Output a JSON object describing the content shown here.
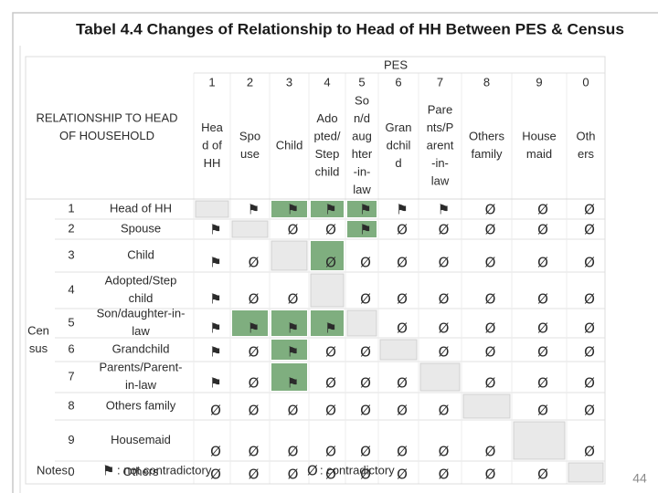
{
  "header": {
    "title": "Tabel 4.4 Changes of Relationship to Head of HH Between PES & Census"
  },
  "table": {
    "pes_label": "PES",
    "relationship_label": [
      "RELATIONSHIP TO HEAD",
      "OF HOUSEHOLD"
    ],
    "census_label": [
      "Cen",
      "sus"
    ],
    "columns": [
      {
        "code": "1",
        "label": [
          "Hea",
          "d of",
          "HH"
        ]
      },
      {
        "code": "2",
        "label": [
          "Spo",
          "use"
        ]
      },
      {
        "code": "3",
        "label": [
          "Child"
        ]
      },
      {
        "code": "4",
        "label": [
          "Ado",
          "pted/",
          "Step",
          "child"
        ]
      },
      {
        "code": "5",
        "label": [
          "So",
          "n/d",
          "aug",
          "hter",
          "-in-",
          "law"
        ]
      },
      {
        "code": "6",
        "label": [
          "Gran",
          "dchil",
          "d"
        ]
      },
      {
        "code": "7",
        "label": [
          "Pare",
          "nts/P",
          "arent",
          "-in-",
          "law"
        ]
      },
      {
        "code": "8",
        "label": [
          "Others",
          "family"
        ]
      },
      {
        "code": "9",
        "label": [
          "House",
          "maid"
        ]
      },
      {
        "code": "0",
        "label": [
          "Oth",
          "ers"
        ]
      }
    ],
    "rows": [
      {
        "code": "1",
        "label": [
          "Head of HH"
        ],
        "cells": [
          null,
          "⚑",
          "⚑",
          "⚑",
          "⚑",
          "⚑",
          "⚑",
          "Ø",
          "Ø",
          "Ø"
        ]
      },
      {
        "code": "2",
        "label": [
          "Spouse"
        ],
        "cells": [
          "⚑",
          null,
          "Ø",
          "Ø",
          "⚑",
          "Ø",
          "Ø",
          "Ø",
          "Ø",
          "Ø"
        ]
      },
      {
        "code": "3",
        "label": [
          "Child"
        ],
        "cells": [
          "⚑",
          "Ø",
          null,
          "Ø",
          "Ø",
          "Ø",
          "Ø",
          "Ø",
          "Ø",
          "Ø"
        ]
      },
      {
        "code": "4",
        "label": [
          "Adopted/Step",
          "child"
        ],
        "cells": [
          "⚑",
          "Ø",
          "Ø",
          null,
          "Ø",
          "Ø",
          "Ø",
          "Ø",
          "Ø",
          "Ø"
        ]
      },
      {
        "code": "5",
        "label": [
          "Son/daughter-in-",
          "law"
        ],
        "cells": [
          "⚑",
          "⚑",
          "⚑",
          "⚑",
          null,
          "Ø",
          "Ø",
          "Ø",
          "Ø",
          "Ø"
        ]
      },
      {
        "code": "6",
        "label": [
          "Grandchild"
        ],
        "cells": [
          "⚑",
          "Ø",
          "⚑",
          "Ø",
          "Ø",
          null,
          "Ø",
          "Ø",
          "Ø",
          "Ø"
        ]
      },
      {
        "code": "7",
        "label": [
          "Parents/Parent-",
          "in-law"
        ],
        "cells": [
          "⚑",
          "Ø",
          "⚑",
          "Ø",
          "Ø",
          "Ø",
          null,
          "Ø",
          "Ø",
          "Ø"
        ]
      },
      {
        "code": "8",
        "label": [
          "Others family"
        ],
        "cells": [
          "Ø",
          "Ø",
          "Ø",
          "Ø",
          "Ø",
          "Ø",
          "Ø",
          null,
          "Ø",
          "Ø"
        ]
      },
      {
        "code": "9",
        "label": [
          "Housemaid"
        ],
        "cells": [
          "Ø",
          "Ø",
          "Ø",
          "Ø",
          "Ø",
          "Ø",
          "Ø",
          "Ø",
          null,
          "Ø"
        ]
      },
      {
        "code": "0",
        "label": [
          "Others"
        ],
        "cells": [
          "Ø",
          "Ø",
          "Ø",
          "Ø",
          "Ø",
          "Ø",
          "Ø",
          "Ø",
          "Ø",
          null
        ]
      }
    ]
  },
  "notes": {
    "label": "Notes:",
    "items": [
      {
        "symbol": "⚑",
        "text": ": not contradictory"
      },
      {
        "symbol": "Ø",
        "text": ": contradictory"
      }
    ]
  },
  "page_number": "44"
}
